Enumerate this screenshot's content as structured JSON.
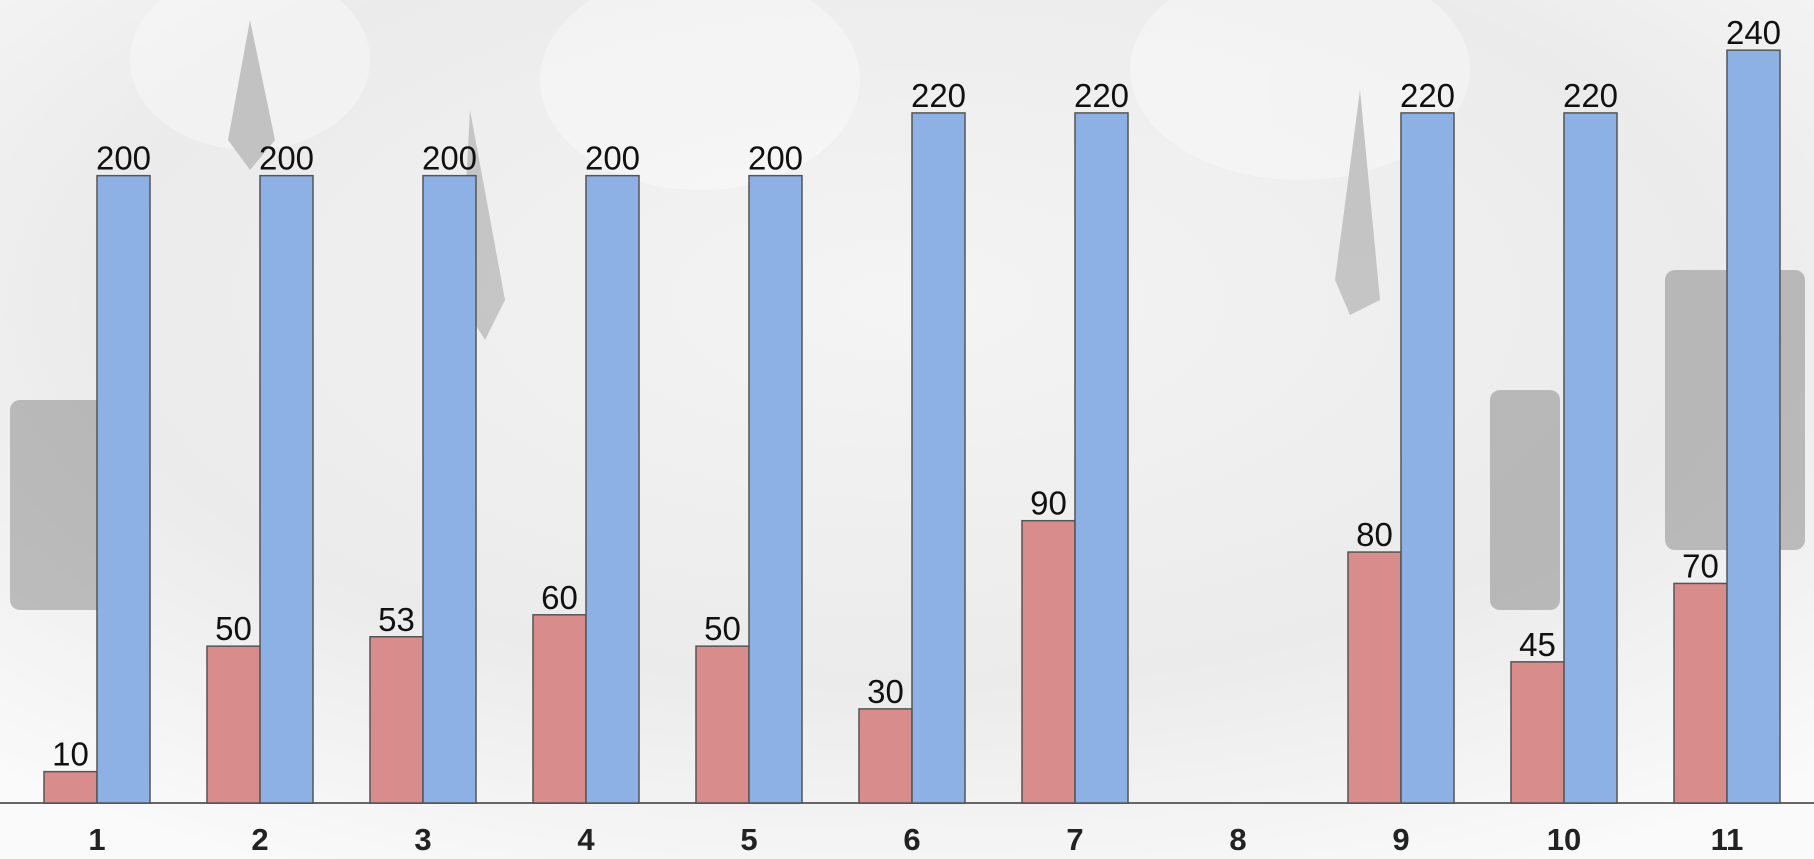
{
  "chart_data": {
    "type": "bar",
    "categories": [
      "1",
      "2",
      "3",
      "4",
      "5",
      "6",
      "7",
      "8",
      "9",
      "10",
      "11"
    ],
    "series": [
      {
        "color": "#d98c8c",
        "values": [
          10,
          50,
          53,
          60,
          50,
          30,
          90,
          null,
          80,
          45,
          70
        ]
      },
      {
        "color": "#8db1e5",
        "values": [
          200,
          200,
          200,
          200,
          200,
          220,
          220,
          null,
          220,
          220,
          240
        ]
      }
    ],
    "ylim": [
      0,
      256
    ]
  }
}
